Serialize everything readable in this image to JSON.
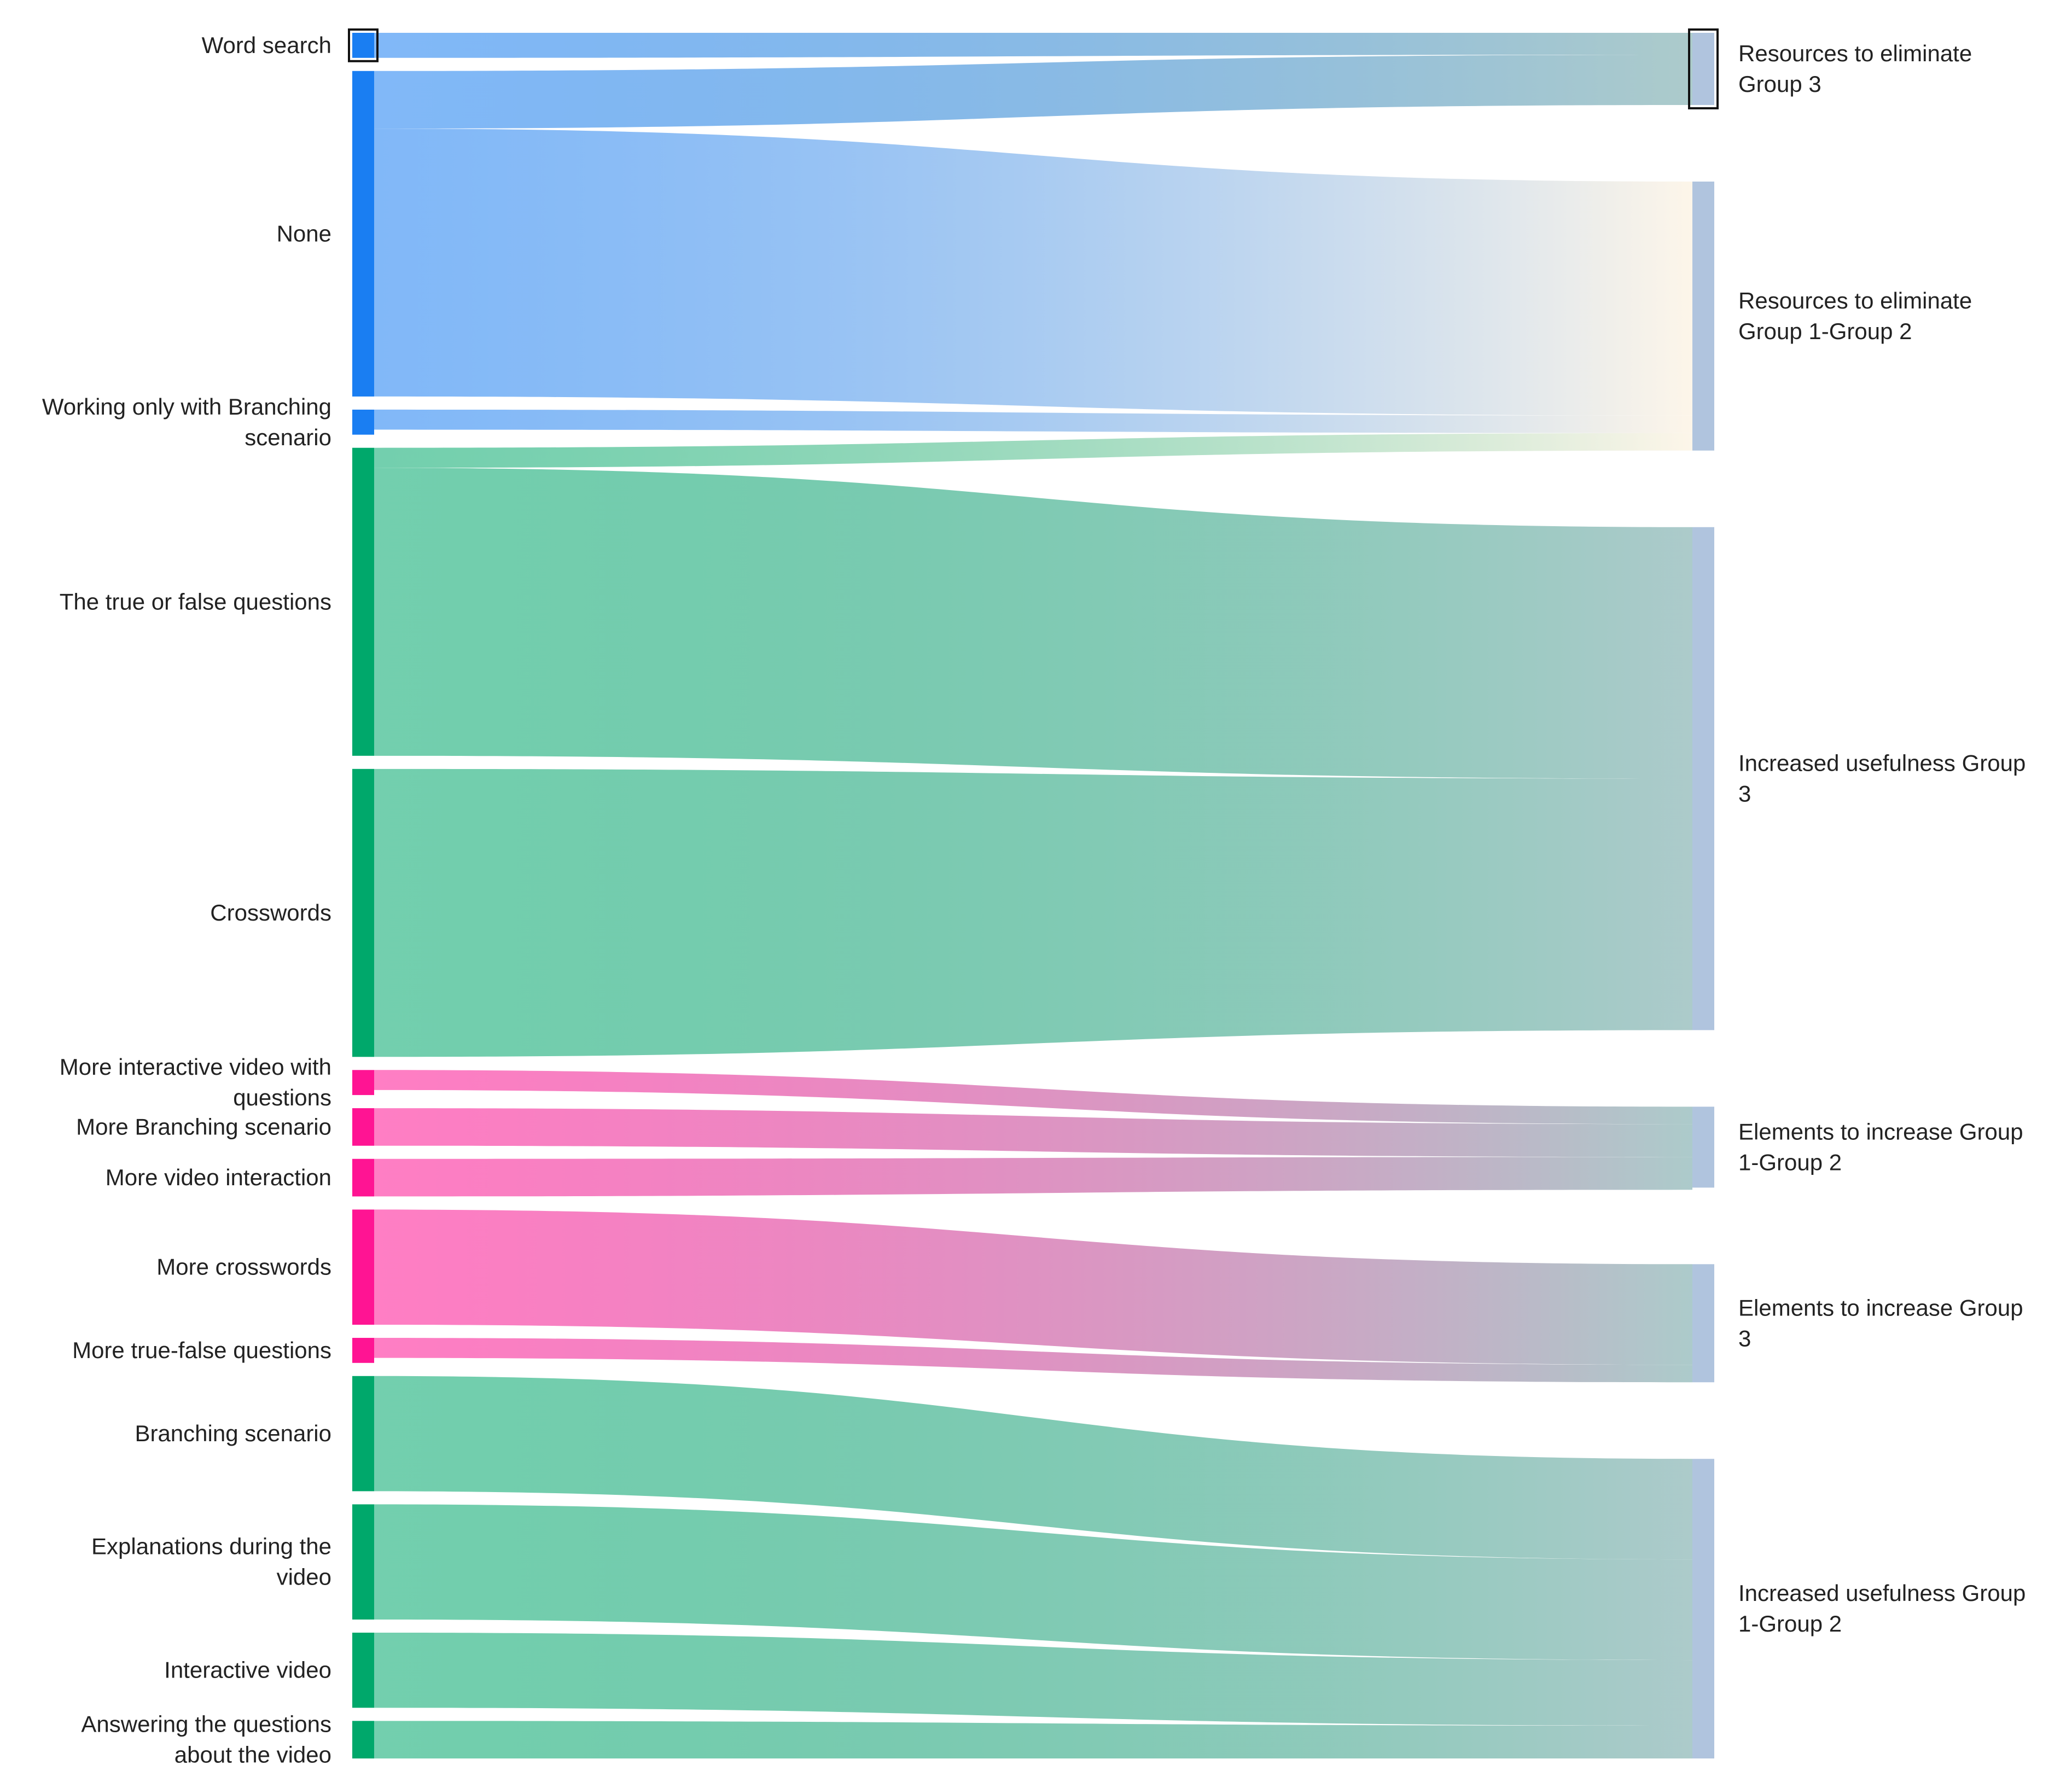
{
  "chart_data": {
    "type": "sankey",
    "title": "",
    "colors": {
      "blue": "#1a7ef2",
      "green": "#00a86b",
      "pink": "#ff1493",
      "target": "#b0c4de",
      "link_end": "#a8c8c8",
      "link_end_warm": "#fdf5e8"
    },
    "sources": [
      {
        "id": "word_search",
        "label": "Word search",
        "group": "blue",
        "value": 1,
        "selected": true
      },
      {
        "id": "none",
        "label": "None",
        "group": "blue",
        "value": 13
      },
      {
        "id": "branching_only",
        "label": "Working only with Branching scenario",
        "group": "blue",
        "value": 1
      },
      {
        "id": "true_false",
        "label": "The true or false questions",
        "group": "green",
        "value": 12.3
      },
      {
        "id": "crosswords",
        "label": "Crosswords",
        "group": "green",
        "value": 11.5
      },
      {
        "id": "more_interactive_video",
        "label": "More interactive video with questions",
        "group": "pink",
        "value": 1
      },
      {
        "id": "more_branching",
        "label": "More Branching scenario",
        "group": "pink",
        "value": 1.5
      },
      {
        "id": "more_video_interaction",
        "label": "More video interaction",
        "group": "pink",
        "value": 1.5
      },
      {
        "id": "more_crosswords",
        "label": "More crosswords",
        "group": "pink",
        "value": 4.6
      },
      {
        "id": "more_true_false",
        "label": "More true-false questions",
        "group": "pink",
        "value": 1
      },
      {
        "id": "branching_scenario",
        "label": "Branching scenario",
        "group": "green",
        "value": 4.6
      },
      {
        "id": "explanations_video",
        "label": "Explanations during the video",
        "group": "green",
        "value": 4.6
      },
      {
        "id": "interactive_video",
        "label": "Interactive video",
        "group": "green",
        "value": 3
      },
      {
        "id": "answering_questions",
        "label": "Answering the questions about the video",
        "group": "green",
        "value": 1.5
      }
    ],
    "targets": [
      {
        "id": "res_g3",
        "label": "Resources to eliminate Group 3",
        "value": 3.3,
        "selected": true
      },
      {
        "id": "res_g12",
        "label": "Resources to eliminate Group 1-Group 2",
        "value": 12.3
      },
      {
        "id": "inc_g3",
        "label": "Increased usefulness Group 3",
        "value": 23
      },
      {
        "id": "el_g12",
        "label": "Elements to increase Group 1-Group 2",
        "value": 3.7
      },
      {
        "id": "el_g3",
        "label": "Elements to increase Group 3",
        "value": 5.4
      },
      {
        "id": "inc_g12",
        "label": "Increased usefulness Group 1-Group 2",
        "value": 13.7
      }
    ],
    "links": [
      {
        "source": "word_search",
        "target": "res_g3",
        "value": 1
      },
      {
        "source": "none",
        "target": "res_g3",
        "value": 2.3
      },
      {
        "source": "none",
        "target": "res_g12",
        "value": 10.7
      },
      {
        "source": "branching_only",
        "target": "res_g12",
        "value": 0.8
      },
      {
        "source": "true_false",
        "target": "res_g12",
        "value": 0.8
      },
      {
        "source": "true_false",
        "target": "inc_g3",
        "value": 11.5
      },
      {
        "source": "crosswords",
        "target": "inc_g3",
        "value": 11.5
      },
      {
        "source": "more_interactive_video",
        "target": "el_g12",
        "value": 0.8
      },
      {
        "source": "more_branching",
        "target": "el_g12",
        "value": 1.5
      },
      {
        "source": "more_video_interaction",
        "target": "el_g12",
        "value": 1.5
      },
      {
        "source": "more_crosswords",
        "target": "el_g3",
        "value": 4.6
      },
      {
        "source": "more_true_false",
        "target": "el_g3",
        "value": 0.8
      },
      {
        "source": "branching_scenario",
        "target": "inc_g12",
        "value": 4.6
      },
      {
        "source": "explanations_video",
        "target": "inc_g12",
        "value": 4.6
      },
      {
        "source": "interactive_video",
        "target": "inc_g12",
        "value": 3
      },
      {
        "source": "answering_questions",
        "target": "inc_g12",
        "value": 1.5
      }
    ]
  }
}
